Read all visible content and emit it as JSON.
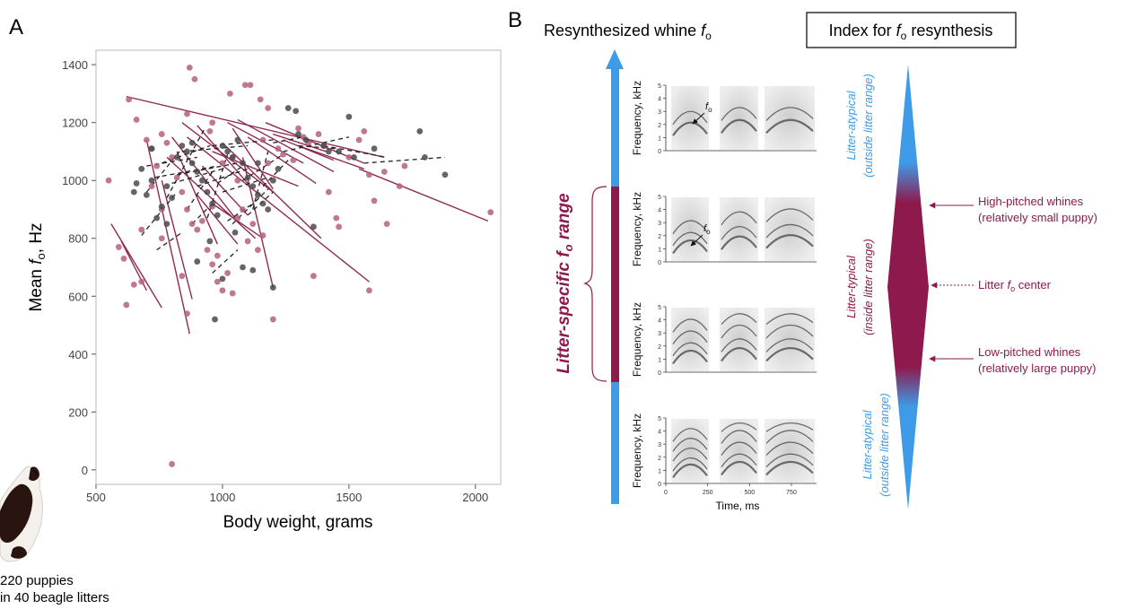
{
  "panels": {
    "a_label": "A",
    "b_label": "B"
  },
  "panel_a": {
    "ylabel_prefix": "Mean ",
    "ylabel_f": "f",
    "ylabel_sub": "o",
    "ylabel_suffix": ", Hz",
    "xlabel": "Body weight, grams",
    "caption_line1": "220 puppies",
    "caption_line2": "in 40 beagle litters",
    "colors": {
      "pink": "#b5607f",
      "gray": "#4a4a4a",
      "line_pink": "#8e2a56",
      "dash": "#222222"
    }
  },
  "chart_data": {
    "type": "scatter",
    "xlabel": "Body weight, grams",
    "ylabel": "Mean fo, Hz",
    "xlim": [
      500,
      2100
    ],
    "ylim": [
      -50,
      1450
    ],
    "x_ticks": [
      500,
      1000,
      1500,
      2000
    ],
    "y_ticks": [
      0,
      200,
      400,
      600,
      800,
      1000,
      1200,
      1400
    ],
    "grid": false,
    "series": [
      {
        "color": "#b5607f",
        "points": [
          [
            630,
            1280
          ],
          [
            660,
            1210
          ],
          [
            870,
            1390
          ],
          [
            890,
            1350
          ],
          [
            1090,
            1330
          ],
          [
            1110,
            1330
          ],
          [
            1150,
            1280
          ],
          [
            1030,
            1300
          ],
          [
            1180,
            1250
          ],
          [
            860,
            1230
          ],
          [
            950,
            1170
          ],
          [
            960,
            1200
          ],
          [
            550,
            1000
          ],
          [
            590,
            770
          ],
          [
            610,
            730
          ],
          [
            620,
            570
          ],
          [
            650,
            640
          ],
          [
            680,
            650
          ],
          [
            700,
            1140
          ],
          [
            720,
            1110
          ],
          [
            740,
            1050
          ],
          [
            760,
            1160
          ],
          [
            780,
            1130
          ],
          [
            800,
            1080
          ],
          [
            820,
            1010
          ],
          [
            840,
            960
          ],
          [
            860,
            900
          ],
          [
            880,
            850
          ],
          [
            900,
            830
          ],
          [
            920,
            860
          ],
          [
            940,
            760
          ],
          [
            960,
            710
          ],
          [
            980,
            650
          ],
          [
            1000,
            620
          ],
          [
            1020,
            680
          ],
          [
            1040,
            610
          ],
          [
            1060,
            870
          ],
          [
            1080,
            900
          ],
          [
            1100,
            790
          ],
          [
            1120,
            850
          ],
          [
            1140,
            760
          ],
          [
            1160,
            810
          ],
          [
            1200,
            520
          ],
          [
            1220,
            1110
          ],
          [
            1240,
            1090
          ],
          [
            1280,
            1070
          ],
          [
            1300,
            1180
          ],
          [
            1320,
            1150
          ],
          [
            1340,
            1130
          ],
          [
            1380,
            1160
          ],
          [
            1400,
            1120
          ],
          [
            1420,
            960
          ],
          [
            1450,
            870
          ],
          [
            1460,
            840
          ],
          [
            1500,
            1080
          ],
          [
            1540,
            1140
          ],
          [
            1560,
            1170
          ],
          [
            1580,
            1020
          ],
          [
            1600,
            930
          ],
          [
            1640,
            1030
          ],
          [
            1650,
            850
          ],
          [
            1700,
            980
          ],
          [
            1720,
            1050
          ],
          [
            1360,
            670
          ],
          [
            1580,
            620
          ],
          [
            800,
            20
          ],
          [
            860,
            540
          ],
          [
            760,
            800
          ],
          [
            960,
            910
          ],
          [
            1000,
            1060
          ],
          [
            1040,
            1080
          ],
          [
            1060,
            1000
          ],
          [
            1160,
            1140
          ],
          [
            1180,
            1060
          ],
          [
            720,
            980
          ],
          [
            760,
            900
          ],
          [
            680,
            830
          ],
          [
            840,
            670
          ],
          [
            980,
            740
          ],
          [
            2060,
            890
          ]
        ]
      },
      {
        "color": "#4a4a4a",
        "points": [
          [
            650,
            960
          ],
          [
            660,
            990
          ],
          [
            680,
            1040
          ],
          [
            700,
            950
          ],
          [
            720,
            1000
          ],
          [
            740,
            870
          ],
          [
            760,
            910
          ],
          [
            780,
            980
          ],
          [
            800,
            940
          ],
          [
            820,
            1080
          ],
          [
            840,
            1120
          ],
          [
            860,
            1100
          ],
          [
            880,
            1060
          ],
          [
            900,
            1030
          ],
          [
            920,
            1000
          ],
          [
            940,
            960
          ],
          [
            960,
            920
          ],
          [
            980,
            880
          ],
          [
            1000,
            1120
          ],
          [
            1020,
            1100
          ],
          [
            1040,
            1080
          ],
          [
            1060,
            1140
          ],
          [
            1080,
            1060
          ],
          [
            1100,
            1010
          ],
          [
            1120,
            980
          ],
          [
            1140,
            950
          ],
          [
            1160,
            920
          ],
          [
            1180,
            900
          ],
          [
            1200,
            1000
          ],
          [
            1220,
            1040
          ],
          [
            1260,
            1250
          ],
          [
            1290,
            1240
          ],
          [
            1300,
            1160
          ],
          [
            1330,
            1140
          ],
          [
            1360,
            840
          ],
          [
            1400,
            1120
          ],
          [
            1420,
            1100
          ],
          [
            1460,
            1100
          ],
          [
            1500,
            1220
          ],
          [
            1520,
            1080
          ],
          [
            1600,
            1110
          ],
          [
            1780,
            1170
          ],
          [
            1800,
            1080
          ],
          [
            1880,
            1020
          ],
          [
            970,
            520
          ],
          [
            1200,
            630
          ],
          [
            900,
            720
          ],
          [
            950,
            790
          ],
          [
            1050,
            820
          ],
          [
            1080,
            700
          ],
          [
            1000,
            660
          ],
          [
            1120,
            690
          ],
          [
            780,
            850
          ],
          [
            720,
            1110
          ],
          [
            880,
            1130
          ],
          [
            1140,
            1060
          ]
        ]
      }
    ],
    "regression_lines_pink": [
      [
        [
          620,
          1290
        ],
        [
          1640,
          1080
        ]
      ],
      [
        [
          560,
          850
        ],
        [
          760,
          560
        ]
      ],
      [
        [
          600,
          790
        ],
        [
          700,
          620
        ]
      ],
      [
        [
          700,
          1140
        ],
        [
          870,
          470
        ]
      ],
      [
        [
          760,
          1000
        ],
        [
          880,
          590
        ]
      ],
      [
        [
          780,
          1080
        ],
        [
          1130,
          800
        ]
      ],
      [
        [
          800,
          1150
        ],
        [
          1050,
          870
        ]
      ],
      [
        [
          820,
          1100
        ],
        [
          980,
          780
        ]
      ],
      [
        [
          840,
          1200
        ],
        [
          1200,
          960
        ]
      ],
      [
        [
          860,
          1150
        ],
        [
          1580,
          650
        ]
      ],
      [
        [
          900,
          1190
        ],
        [
          1100,
          990
        ]
      ],
      [
        [
          920,
          1050
        ],
        [
          1100,
          880
        ]
      ],
      [
        [
          960,
          1100
        ],
        [
          1300,
          980
        ]
      ],
      [
        [
          1000,
          1130
        ],
        [
          1390,
          800
        ]
      ],
      [
        [
          1020,
          1200
        ],
        [
          1320,
          1060
        ]
      ],
      [
        [
          1040,
          1180
        ],
        [
          1200,
          970
        ]
      ],
      [
        [
          1060,
          1210
        ],
        [
          1440,
          1030
        ]
      ],
      [
        [
          1080,
          1080
        ],
        [
          1200,
          630
        ]
      ],
      [
        [
          1100,
          1150
        ],
        [
          1370,
          990
        ]
      ],
      [
        [
          1200,
          1160
        ],
        [
          1410,
          1100
        ]
      ],
      [
        [
          1240,
          1140
        ],
        [
          1440,
          1070
        ]
      ],
      [
        [
          1540,
          1040
        ],
        [
          2050,
          860
        ]
      ],
      [
        [
          1300,
          1120
        ],
        [
          1560,
          1040
        ]
      ],
      [
        [
          1170,
          1200
        ],
        [
          1560,
          1060
        ]
      ],
      [
        [
          900,
          950
        ],
        [
          1060,
          780
        ]
      ],
      [
        [
          960,
          920
        ],
        [
          1160,
          800
        ]
      ]
    ],
    "regression_lines_dashed": [
      [
        [
          700,
          960
        ],
        [
          830,
          1100
        ]
      ],
      [
        [
          700,
          1050
        ],
        [
          900,
          1080
        ]
      ],
      [
        [
          730,
          1010
        ],
        [
          980,
          1050
        ]
      ],
      [
        [
          760,
          1060
        ],
        [
          950,
          1120
        ]
      ],
      [
        [
          780,
          940
        ],
        [
          930,
          1180
        ]
      ],
      [
        [
          800,
          990
        ],
        [
          1000,
          1040
        ]
      ],
      [
        [
          820,
          1020
        ],
        [
          1060,
          1060
        ]
      ],
      [
        [
          840,
          1100
        ],
        [
          1100,
          1120
        ]
      ],
      [
        [
          860,
          900
        ],
        [
          960,
          1030
        ]
      ],
      [
        [
          900,
          980
        ],
        [
          1100,
          1040
        ]
      ],
      [
        [
          940,
          870
        ],
        [
          1020,
          1090
        ]
      ],
      [
        [
          960,
          1120
        ],
        [
          1200,
          1140
        ]
      ],
      [
        [
          980,
          990
        ],
        [
          1080,
          1050
        ]
      ],
      [
        [
          1000,
          960
        ],
        [
          1180,
          1010
        ]
      ],
      [
        [
          1040,
          850
        ],
        [
          1180,
          970
        ]
      ],
      [
        [
          1080,
          1000
        ],
        [
          1240,
          1090
        ]
      ],
      [
        [
          1120,
          900
        ],
        [
          1180,
          1100
        ]
      ],
      [
        [
          1160,
          980
        ],
        [
          1260,
          1070
        ]
      ],
      [
        [
          1200,
          1130
        ],
        [
          1320,
          1150
        ]
      ],
      [
        [
          1240,
          1100
        ],
        [
          1500,
          1150
        ]
      ],
      [
        [
          1300,
          1120
        ],
        [
          1450,
          1110
        ]
      ],
      [
        [
          1400,
          1120
        ],
        [
          1650,
          1080
        ]
      ],
      [
        [
          1560,
          1060
        ],
        [
          1880,
          1080
        ]
      ],
      [
        [
          680,
          810
        ],
        [
          820,
          960
        ]
      ],
      [
        [
          880,
          850
        ],
        [
          960,
          920
        ]
      ],
      [
        [
          1020,
          860
        ],
        [
          1120,
          920
        ]
      ],
      [
        [
          960,
          680
        ],
        [
          1060,
          760
        ]
      ],
      [
        [
          1100,
          880
        ],
        [
          1200,
          960
        ]
      ],
      [
        [
          740,
          760
        ],
        [
          840,
          820
        ]
      ]
    ]
  },
  "panel_b": {
    "title_left": "Resynthesized whine ",
    "title_f": "f",
    "title_sub": "o",
    "index_box_prefix": "Index for ",
    "index_box_f": "f",
    "index_box_sub": "o",
    "index_box_suffix": " resynthesis",
    "range_label_prefix": "Litter-specific  ",
    "range_label_f": "f",
    "range_label_sub": "o",
    "range_label_suffix": " range",
    "spectro_ylabel": "Frequency, kHz",
    "spectro_yticks": [
      "0",
      "1",
      "2",
      "3",
      "4",
      "5"
    ],
    "spectro_xticks": [
      "0",
      "250",
      "500",
      "750"
    ],
    "spectro_xlabel": "Time, ms",
    "fo_annotation": "f",
    "fo_annotation_sub": "o",
    "atypical_top_1": "Litter-atypical",
    "atypical_top_2": "(outside litter range)",
    "typical_1": "Litter-typical",
    "typical_2": "(inside litter range)",
    "atypical_bot_1": "Litter-atypical",
    "atypical_bot_2": "(outside litter range)",
    "high_1": "High-pitched whines",
    "high_2": "(relatively small puppy)",
    "center_prefix": "Litter ",
    "center_f": "f",
    "center_sub": "o",
    "center_suffix": " center",
    "low_1": "Low-pitched whines",
    "low_2": "(relatively large puppy)",
    "colors": {
      "blue": "#3e9be8",
      "maroon": "#8e1a4d"
    }
  }
}
